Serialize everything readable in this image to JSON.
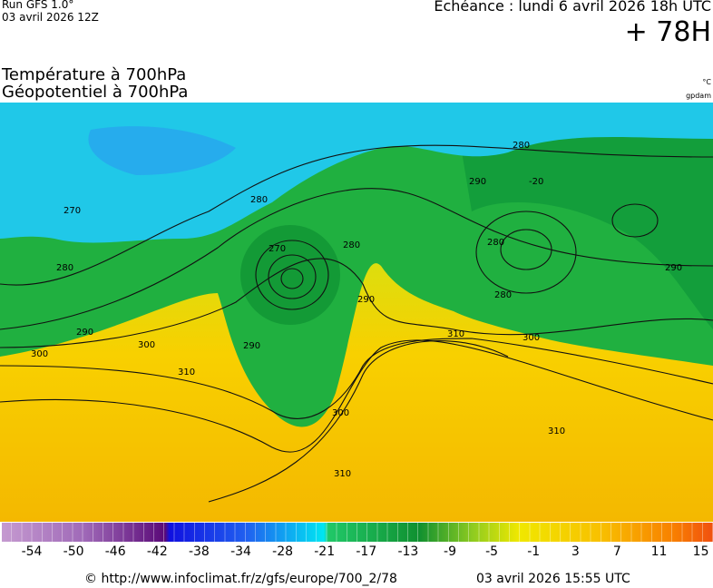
{
  "header": {
    "model": "Run GFS 1.0°",
    "run": "03 avril 2026 12Z",
    "echeance": "Echéance : lundi 6 avril 2026 18h UTC",
    "lead": "+ 78H",
    "title1": "Température à 700hPa",
    "title2": "Géopotentiel à 700hPa",
    "unit1": "°C",
    "unit2": "gpdam"
  },
  "contour_labels": [
    "280",
    "270",
    "280",
    "280",
    "270",
    "290",
    "300",
    "290",
    "310",
    "300",
    "300",
    "310",
    "280",
    "290",
    "280",
    "280",
    "290",
    "290",
    "300",
    "310",
    "310",
    "-20"
  ],
  "colorbar": {
    "labels": [
      -54,
      -50,
      -46,
      -42,
      -38,
      -34,
      -28,
      -21,
      -17,
      -13,
      -9,
      -5,
      -1,
      3,
      7,
      11,
      15
    ]
  },
  "footer": {
    "source": "© http://www.infoclimat.fr/z/gfs/europe/700_2/78",
    "date": "03 avril 2026 15:55 UTC"
  }
}
